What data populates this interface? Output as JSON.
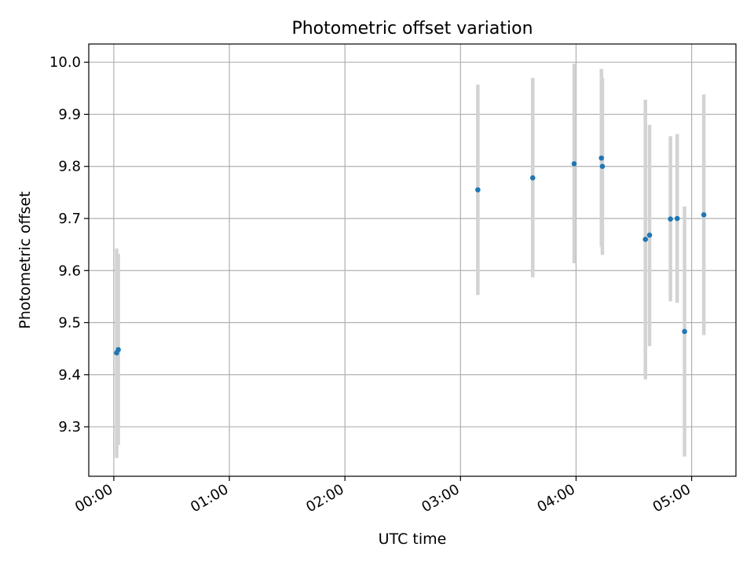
{
  "chart_data": {
    "type": "scatter",
    "title": "Photometric offset variation",
    "xlabel": "UTC time",
    "ylabel": "Photometric offset",
    "x_unit": "UTC time (HH:MM)",
    "xlim": [
      "23:47",
      "05:23"
    ],
    "ylim": [
      9.205,
      10.035
    ],
    "grid": true,
    "xticks": [
      "00:00",
      "01:00",
      "02:00",
      "03:00",
      "04:00",
      "05:00"
    ],
    "yticks": [
      9.3,
      9.4,
      9.5,
      9.6,
      9.7,
      9.8,
      9.9,
      10.0
    ],
    "colors": {
      "point": "#1f77b4",
      "errorbar": "#d3d3d3",
      "grid": "#b0b0b0"
    },
    "points": [
      {
        "x": "00:01:30",
        "y": 9.442,
        "err_low": 9.24,
        "err_high": 9.642
      },
      {
        "x": "00:02:20",
        "y": 9.448,
        "err_low": 9.265,
        "err_high": 9.632
      },
      {
        "x": "03:09:00",
        "y": 9.755,
        "err_low": 9.553,
        "err_high": 9.957
      },
      {
        "x": "03:37:30",
        "y": 9.778,
        "err_low": 9.587,
        "err_high": 9.97
      },
      {
        "x": "03:59:00",
        "y": 9.805,
        "err_low": 9.614,
        "err_high": 9.997
      },
      {
        "x": "04:13:10",
        "y": 9.816,
        "err_low": 9.645,
        "err_high": 9.987
      },
      {
        "x": "04:13:40",
        "y": 9.8,
        "err_low": 9.63,
        "err_high": 9.97
      },
      {
        "x": "04:36:00",
        "y": 9.66,
        "err_low": 9.391,
        "err_high": 9.928
      },
      {
        "x": "04:38:10",
        "y": 9.668,
        "err_low": 9.455,
        "err_high": 9.88
      },
      {
        "x": "04:49:00",
        "y": 9.699,
        "err_low": 9.541,
        "err_high": 9.858
      },
      {
        "x": "04:52:30",
        "y": 9.7,
        "err_low": 9.538,
        "err_high": 9.862
      },
      {
        "x": "04:56:20",
        "y": 9.483,
        "err_low": 9.243,
        "err_high": 9.723
      },
      {
        "x": "05:06:20",
        "y": 9.707,
        "err_low": 9.476,
        "err_high": 9.938
      }
    ]
  }
}
